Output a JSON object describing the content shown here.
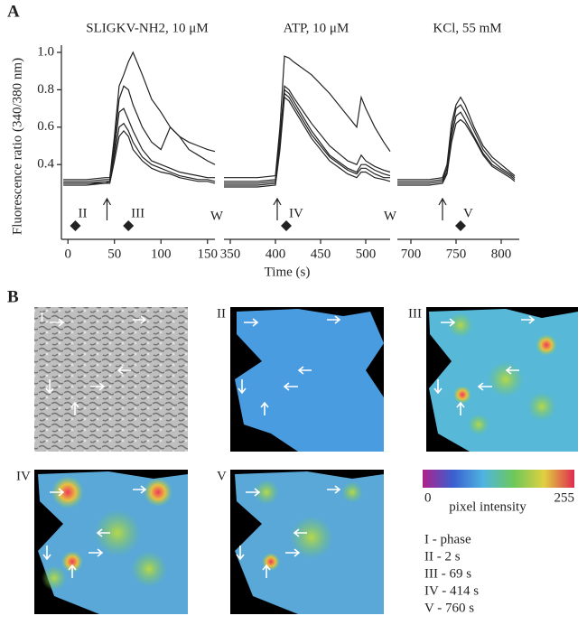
{
  "figure": {
    "panel_a_label": "A",
    "ylabel": "Fluorescence ratio (340/380 nm)",
    "xlabel": "Time (s)",
    "panel_b_label": "B"
  },
  "chart_data": [
    {
      "type": "line",
      "title": "SLIGKV-NH2, 10 μM",
      "x": [
        -5,
        0,
        20,
        40,
        45,
        50,
        55,
        60,
        65,
        70,
        80,
        90,
        100,
        110,
        120,
        130,
        140,
        150,
        158
      ],
      "series": [
        {
          "color": "#222",
          "values": [
            0.32,
            0.32,
            0.32,
            0.33,
            0.33,
            0.55,
            0.82,
            0.88,
            0.95,
            1.0,
            0.88,
            0.75,
            0.68,
            0.6,
            0.55,
            0.52,
            0.5,
            0.48,
            0.47
          ]
        },
        {
          "color": "#222",
          "values": [
            0.31,
            0.31,
            0.31,
            0.32,
            0.32,
            0.52,
            0.75,
            0.82,
            0.8,
            0.72,
            0.6,
            0.52,
            0.48,
            0.6,
            0.55,
            0.48,
            0.45,
            0.42,
            0.4
          ]
        },
        {
          "color": "#222",
          "values": [
            0.3,
            0.3,
            0.3,
            0.31,
            0.31,
            0.48,
            0.68,
            0.7,
            0.64,
            0.58,
            0.48,
            0.42,
            0.4,
            0.38,
            0.36,
            0.35,
            0.34,
            0.33,
            0.33
          ]
        },
        {
          "color": "#222",
          "values": [
            0.3,
            0.3,
            0.3,
            0.3,
            0.31,
            0.45,
            0.6,
            0.62,
            0.58,
            0.52,
            0.44,
            0.4,
            0.38,
            0.36,
            0.34,
            0.33,
            0.32,
            0.32,
            0.31
          ]
        },
        {
          "color": "#222",
          "values": [
            0.29,
            0.29,
            0.29,
            0.3,
            0.3,
            0.42,
            0.55,
            0.58,
            0.55,
            0.48,
            0.42,
            0.38,
            0.36,
            0.35,
            0.33,
            0.32,
            0.31,
            0.31,
            0.3
          ]
        }
      ],
      "xlim": [
        -7,
        158
      ],
      "xticks": [
        0,
        50,
        100,
        150
      ],
      "ylim": [
        0,
        1
      ],
      "yticks": [
        0.4,
        0.6,
        0.8,
        {
          "value": 1,
          "label": "1.0"
        }
      ],
      "markers": [
        {
          "label": "II",
          "x": 8
        },
        {
          "label": "III",
          "x": 65
        }
      ],
      "arrows": [
        42
      ]
    },
    {
      "type": "line",
      "title": "ATP,   10 μM",
      "wash_label": "W",
      "x": [
        343,
        360,
        380,
        400,
        405,
        410,
        415,
        420,
        440,
        460,
        480,
        490,
        495,
        500,
        510,
        520,
        527
      ],
      "series": [
        {
          "color": "#222",
          "values": [
            0.33,
            0.33,
            0.33,
            0.34,
            0.6,
            0.98,
            0.97,
            0.95,
            0.88,
            0.78,
            0.66,
            0.6,
            0.76,
            0.7,
            0.6,
            0.52,
            0.47
          ]
        },
        {
          "color": "#222",
          "values": [
            0.31,
            0.31,
            0.31,
            0.32,
            0.55,
            0.82,
            0.8,
            0.76,
            0.62,
            0.5,
            0.42,
            0.4,
            0.45,
            0.42,
            0.39,
            0.37,
            0.36
          ]
        },
        {
          "color": "#222",
          "values": [
            0.3,
            0.3,
            0.3,
            0.31,
            0.52,
            0.8,
            0.78,
            0.74,
            0.58,
            0.45,
            0.38,
            0.36,
            0.4,
            0.4,
            0.37,
            0.35,
            0.34
          ]
        },
        {
          "color": "#222",
          "values": [
            0.29,
            0.29,
            0.29,
            0.3,
            0.5,
            0.78,
            0.76,
            0.72,
            0.56,
            0.44,
            0.37,
            0.35,
            0.38,
            0.38,
            0.35,
            0.33,
            0.33
          ]
        },
        {
          "color": "#222",
          "values": [
            0.28,
            0.28,
            0.28,
            0.29,
            0.48,
            0.76,
            0.74,
            0.7,
            0.54,
            0.42,
            0.35,
            0.33,
            0.36,
            0.36,
            0.33,
            0.32,
            0.31
          ]
        }
      ],
      "xlim": [
        343,
        527
      ],
      "xticks": [
        350,
        400,
        450,
        500
      ],
      "ylim": [
        0,
        1
      ],
      "markers": [
        {
          "label": "IV",
          "x": 412
        }
      ],
      "arrows": [
        402
      ]
    },
    {
      "type": "line",
      "title": "KCl, 55 mM",
      "wash_label": "W",
      "x": [
        685,
        700,
        720,
        735,
        740,
        745,
        750,
        755,
        760,
        770,
        780,
        790,
        800,
        810,
        815
      ],
      "series": [
        {
          "color": "#222",
          "values": [
            0.32,
            0.32,
            0.32,
            0.33,
            0.4,
            0.62,
            0.72,
            0.76,
            0.72,
            0.6,
            0.5,
            0.44,
            0.4,
            0.36,
            0.34
          ]
        },
        {
          "color": "#222",
          "values": [
            0.31,
            0.31,
            0.31,
            0.32,
            0.38,
            0.58,
            0.7,
            0.72,
            0.68,
            0.58,
            0.48,
            0.42,
            0.38,
            0.35,
            0.33
          ]
        },
        {
          "color": "#222",
          "values": [
            0.3,
            0.3,
            0.3,
            0.31,
            0.36,
            0.55,
            0.66,
            0.68,
            0.64,
            0.55,
            0.46,
            0.4,
            0.37,
            0.34,
            0.32
          ]
        },
        {
          "color": "#222",
          "values": [
            0.29,
            0.29,
            0.29,
            0.3,
            0.35,
            0.52,
            0.62,
            0.64,
            0.62,
            0.54,
            0.45,
            0.39,
            0.36,
            0.33,
            0.31
          ]
        }
      ],
      "xlim": [
        685,
        820
      ],
      "xticks": [
        700,
        750,
        800
      ],
      "ylim": [
        0,
        1
      ],
      "markers": [
        {
          "label": "V",
          "x": 755
        }
      ],
      "arrows": [
        735
      ]
    }
  ],
  "panel_b": {
    "images": [
      {
        "label": "I"
      },
      {
        "label": "II"
      },
      {
        "label": "III"
      },
      {
        "label": "IV"
      },
      {
        "label": "V"
      }
    ],
    "colorbar": {
      "min_label": 0,
      "title": "pixel intensity",
      "max_label": 255
    },
    "key": [
      "I - phase",
      "II - 2 s",
      "III - 69 s",
      "IV - 414 s",
      "V  - 760 s"
    ]
  }
}
